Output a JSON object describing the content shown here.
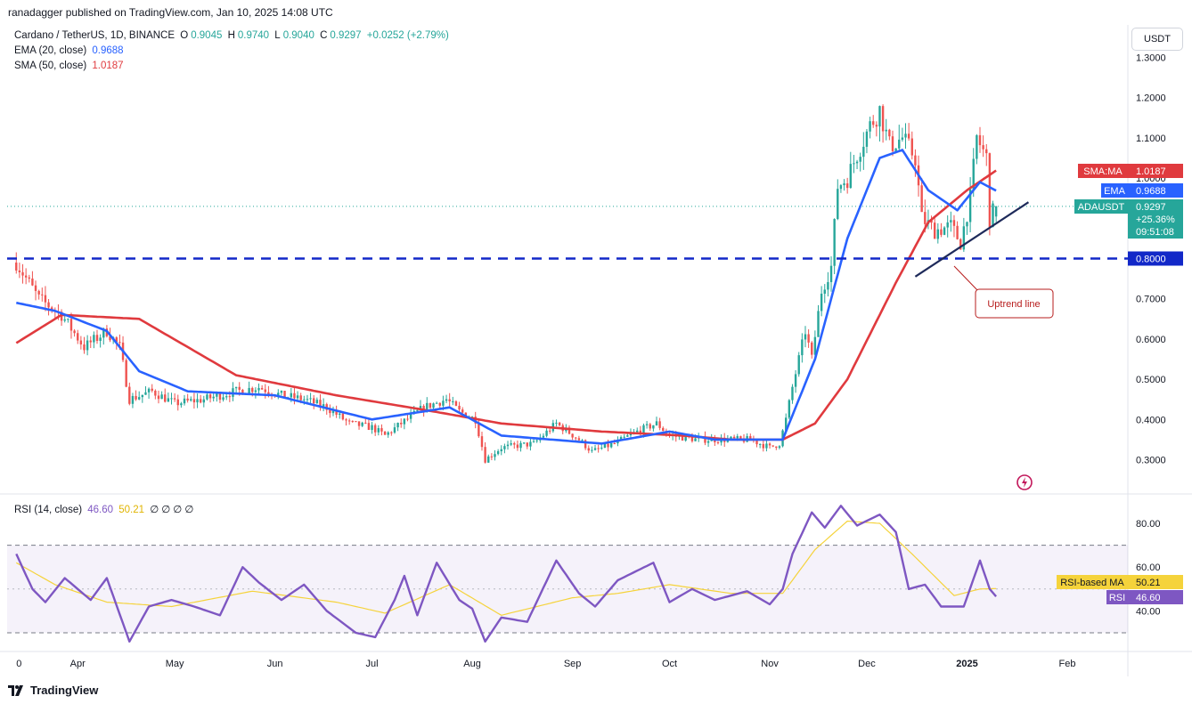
{
  "publisher": "ranadagger published on TradingView.com, Jan 10, 2025 14:08 UTC",
  "footer": {
    "brand": "TradingView"
  },
  "legend": {
    "symbol": "Cardano / TetherUS, 1D, BINANCE",
    "o_label": "O",
    "o": "0.9045",
    "h_label": "H",
    "h": "0.9740",
    "l_label": "L",
    "l": "0.9040",
    "c_label": "C",
    "c": "0.9297",
    "change": "+0.0252 (+2.79%)",
    "ema_label": "EMA (20, close)",
    "ema_value": "0.9688",
    "sma_label": "SMA (50, close)",
    "sma_value": "1.0187",
    "rsi_label": "RSI (14, close)",
    "rsi_value": "46.60",
    "rsi_ma_value": "50.21",
    "rsi_extras": [
      "∅",
      "∅",
      "∅",
      "∅"
    ]
  },
  "currency_button": "USDT",
  "price_axis": {
    "ticks": [
      "1.3000",
      "1.2000",
      "1.1000",
      "1.0000",
      "0.7000",
      "0.6000",
      "0.5000",
      "0.4000",
      "0.3000"
    ]
  },
  "rsi_axis": {
    "ticks": [
      "80.00",
      "60.00",
      "40.00"
    ]
  },
  "time_axis": {
    "ticks": [
      "0",
      "Apr",
      "May",
      "Jun",
      "Jul",
      "Aug",
      "Sep",
      "Oct",
      "Nov",
      "Dec",
      "2025",
      "Feb"
    ]
  },
  "tags": {
    "sma": {
      "name": "SMA:MA",
      "value": "1.0187"
    },
    "ema": {
      "name": "EMA",
      "value": "0.9688"
    },
    "price": {
      "name": "ADAUSDT",
      "value": "0.9297",
      "change": "+25.36%",
      "countdown": "09:51:08"
    },
    "support": {
      "value": "0.8000"
    },
    "rsi_ma": {
      "name": "RSI-based MA",
      "value": "50.21"
    },
    "rsi": {
      "name": "RSI",
      "value": "46.60"
    }
  },
  "annotation": "Uptrend line",
  "colors": {
    "up": "#26a69a",
    "down": "#ef5350",
    "ema": "#2962ff",
    "sma": "#e03a3e",
    "rsi": "#7e57c2",
    "rsi_ma": "#f5d33b",
    "support": "#1228c8",
    "trend": "#1e2a5a"
  },
  "chart_data": {
    "type": "candlestick",
    "title": "Cardano / TetherUS, 1D, BINANCE",
    "price_range": [
      0.24,
      1.38
    ],
    "support_level": 0.8,
    "current": {
      "open": 0.9045,
      "high": 0.974,
      "low": 0.904,
      "close": 0.9297
    },
    "price_anchors": [
      [
        "03-13",
        0.79
      ],
      [
        "03-20",
        0.7
      ],
      [
        "03-27",
        0.66
      ],
      [
        "04-03",
        0.58
      ],
      [
        "04-10",
        0.62
      ],
      [
        "04-14",
        0.58
      ],
      [
        "04-17",
        0.45
      ],
      [
        "04-24",
        0.47
      ],
      [
        "05-01",
        0.44
      ],
      [
        "05-10",
        0.45
      ],
      [
        "05-20",
        0.47
      ],
      [
        "05-27",
        0.48
      ],
      [
        "06-03",
        0.46
      ],
      [
        "06-10",
        0.45
      ],
      [
        "06-17",
        0.43
      ],
      [
        "06-24",
        0.39
      ],
      [
        "07-01",
        0.38
      ],
      [
        "07-05",
        0.36
      ],
      [
        "07-10",
        0.39
      ],
      [
        "07-17",
        0.43
      ],
      [
        "07-24",
        0.45
      ],
      [
        "07-28",
        0.42
      ],
      [
        "08-02",
        0.4
      ],
      [
        "08-05",
        0.3
      ],
      [
        "08-10",
        0.33
      ],
      [
        "08-20",
        0.34
      ],
      [
        "08-27",
        0.39
      ],
      [
        "09-03",
        0.35
      ],
      [
        "09-07",
        0.32
      ],
      [
        "09-14",
        0.34
      ],
      [
        "09-21",
        0.37
      ],
      [
        "09-27",
        0.39
      ],
      [
        "10-01",
        0.36
      ],
      [
        "10-10",
        0.35
      ],
      [
        "10-20",
        0.35
      ],
      [
        "10-26",
        0.35
      ],
      [
        "11-01",
        0.33
      ],
      [
        "11-04",
        0.34
      ],
      [
        "11-06",
        0.4
      ],
      [
        "11-08",
        0.48
      ],
      [
        "11-12",
        0.62
      ],
      [
        "11-14",
        0.55
      ],
      [
        "11-17",
        0.72
      ],
      [
        "11-20",
        0.78
      ],
      [
        "11-22",
        0.98
      ],
      [
        "11-25",
        1.0
      ],
      [
        "11-28",
        1.06
      ],
      [
        "12-02",
        1.13
      ],
      [
        "12-05",
        1.17
      ],
      [
        "12-08",
        1.08
      ],
      [
        "12-12",
        1.1
      ],
      [
        "12-16",
        1.05
      ],
      [
        "12-18",
        0.9
      ],
      [
        "12-22",
        0.87
      ],
      [
        "12-27",
        0.88
      ],
      [
        "12-30",
        0.84
      ],
      [
        "01-02",
        0.95
      ],
      [
        "01-04",
        1.1
      ],
      [
        "01-07",
        1.05
      ],
      [
        "01-08",
        0.9
      ],
      [
        "01-10",
        0.93
      ]
    ],
    "ema20_anchors": [
      [
        "03-13",
        0.69
      ],
      [
        "03-25",
        0.67
      ],
      [
        "04-10",
        0.62
      ],
      [
        "04-20",
        0.52
      ],
      [
        "05-05",
        0.47
      ],
      [
        "06-01",
        0.46
      ],
      [
        "07-01",
        0.4
      ],
      [
        "07-25",
        0.43
      ],
      [
        "08-10",
        0.36
      ],
      [
        "09-10",
        0.34
      ],
      [
        "10-01",
        0.37
      ],
      [
        "10-15",
        0.35
      ],
      [
        "11-05",
        0.35
      ],
      [
        "11-15",
        0.55
      ],
      [
        "11-25",
        0.85
      ],
      [
        "12-05",
        1.05
      ],
      [
        "12-12",
        1.07
      ],
      [
        "12-20",
        0.97
      ],
      [
        "12-29",
        0.92
      ],
      [
        "01-05",
        0.99
      ],
      [
        "01-10",
        0.9688
      ]
    ],
    "sma50_anchors": [
      [
        "03-13",
        0.59
      ],
      [
        "03-27",
        0.66
      ],
      [
        "04-20",
        0.65
      ],
      [
        "05-20",
        0.51
      ],
      [
        "06-20",
        0.46
      ],
      [
        "07-20",
        0.42
      ],
      [
        "08-10",
        0.39
      ],
      [
        "09-10",
        0.37
      ],
      [
        "10-05",
        0.36
      ],
      [
        "10-20",
        0.35
      ],
      [
        "11-05",
        0.35
      ],
      [
        "11-15",
        0.39
      ],
      [
        "11-25",
        0.5
      ],
      [
        "12-10",
        0.74
      ],
      [
        "12-20",
        0.89
      ],
      [
        "01-01",
        0.97
      ],
      [
        "01-10",
        1.0187
      ]
    ],
    "rsi_anchors": [
      [
        "03-13",
        66
      ],
      [
        "03-18",
        50
      ],
      [
        "03-22",
        44
      ],
      [
        "03-28",
        55
      ],
      [
        "04-05",
        45
      ],
      [
        "04-10",
        55
      ],
      [
        "04-17",
        26
      ],
      [
        "04-23",
        42
      ],
      [
        "04-30",
        45
      ],
      [
        "05-07",
        42
      ],
      [
        "05-15",
        38
      ],
      [
        "05-22",
        60
      ],
      [
        "05-27",
        53
      ],
      [
        "06-03",
        45
      ],
      [
        "06-10",
        52
      ],
      [
        "06-17",
        40
      ],
      [
        "06-26",
        30
      ],
      [
        "07-02",
        28
      ],
      [
        "07-08",
        45
      ],
      [
        "07-11",
        56
      ],
      [
        "07-15",
        38
      ],
      [
        "07-21",
        62
      ],
      [
        "07-28",
        45
      ],
      [
        "08-01",
        41
      ],
      [
        "08-05",
        26
      ],
      [
        "08-10",
        37
      ],
      [
        "08-18",
        35
      ],
      [
        "08-27",
        63
      ],
      [
        "09-03",
        48
      ],
      [
        "09-08",
        42
      ],
      [
        "09-15",
        54
      ],
      [
        "09-26",
        62
      ],
      [
        "10-01",
        44
      ],
      [
        "10-08",
        50
      ],
      [
        "10-15",
        45
      ],
      [
        "10-25",
        49
      ],
      [
        "11-01",
        43
      ],
      [
        "11-05",
        50
      ],
      [
        "11-08",
        66
      ],
      [
        "11-14",
        85
      ],
      [
        "11-18",
        78
      ],
      [
        "11-23",
        88
      ],
      [
        "11-28",
        79
      ],
      [
        "12-05",
        84
      ],
      [
        "12-10",
        76
      ],
      [
        "12-14",
        50
      ],
      [
        "12-19",
        52
      ],
      [
        "12-24",
        42
      ],
      [
        "12-31",
        42
      ],
      [
        "01-05",
        63
      ],
      [
        "01-08",
        50
      ],
      [
        "01-10",
        46.6
      ]
    ],
    "rsi_ma_anchors": [
      [
        "03-13",
        62
      ],
      [
        "03-25",
        52
      ],
      [
        "04-10",
        44
      ],
      [
        "04-30",
        42
      ],
      [
        "05-25",
        49
      ],
      [
        "06-20",
        44
      ],
      [
        "07-05",
        39
      ],
      [
        "07-25",
        52
      ],
      [
        "08-10",
        38
      ],
      [
        "09-01",
        46
      ],
      [
        "09-15",
        48
      ],
      [
        "10-01",
        52
      ],
      [
        "10-20",
        48
      ],
      [
        "11-05",
        48
      ],
      [
        "11-15",
        68
      ],
      [
        "11-25",
        81
      ],
      [
        "12-05",
        80
      ],
      [
        "12-15",
        66
      ],
      [
        "12-28",
        47
      ],
      [
        "01-05",
        50
      ],
      [
        "01-10",
        50.21
      ]
    ],
    "rsi_range": [
      20,
      95
    ],
    "rsi_bands": [
      30,
      70
    ]
  }
}
